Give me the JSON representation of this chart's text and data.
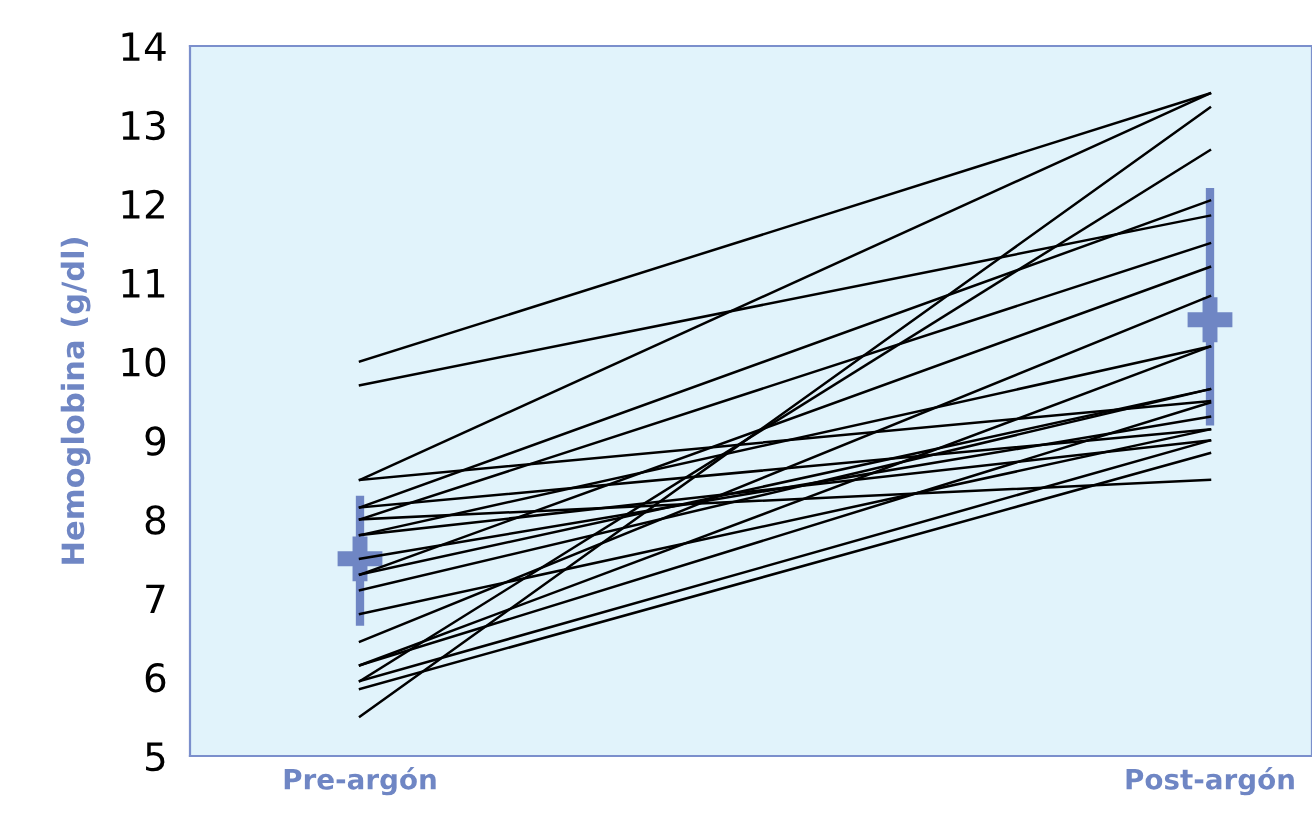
{
  "chart_data": {
    "type": "line",
    "ylabel": "Hemoglobina (g/dl)",
    "categories": [
      "Pre-argón",
      "Post-argón"
    ],
    "ylim": [
      5,
      14
    ],
    "yticks": [
      5,
      6,
      7,
      8,
      9,
      10,
      11,
      12,
      13,
      14
    ],
    "grid": false,
    "legend": false,
    "marker": "none",
    "line_style": "solid",
    "series": [
      {
        "color": "#000000",
        "values": [
          10.0,
          13.4
        ]
      },
      {
        "color": "#000000",
        "values": [
          9.7,
          11.85
        ]
      },
      {
        "color": "#000000",
        "values": [
          8.5,
          13.4
        ]
      },
      {
        "color": "#000000",
        "values": [
          8.5,
          9.5
        ]
      },
      {
        "color": "#000000",
        "values": [
          8.15,
          12.04
        ]
      },
      {
        "color": "#000000",
        "values": [
          8.15,
          9.14
        ]
      },
      {
        "color": "#000000",
        "values": [
          8.0,
          11.5
        ]
      },
      {
        "color": "#000000",
        "values": [
          8.0,
          8.5
        ]
      },
      {
        "color": "#000000",
        "values": [
          7.8,
          10.19
        ]
      },
      {
        "color": "#000000",
        "values": [
          7.8,
          9.0
        ]
      },
      {
        "color": "#000000",
        "values": [
          7.5,
          9.3
        ]
      },
      {
        "color": "#000000",
        "values": [
          7.3,
          11.2
        ]
      },
      {
        "color": "#000000",
        "values": [
          7.3,
          9.65
        ]
      },
      {
        "color": "#000000",
        "values": [
          7.1,
          9.65
        ]
      },
      {
        "color": "#000000",
        "values": [
          6.8,
          9.14
        ]
      },
      {
        "color": "#000000",
        "values": [
          6.45,
          10.83
        ]
      },
      {
        "color": "#000000",
        "values": [
          6.15,
          10.19
        ]
      },
      {
        "color": "#000000",
        "values": [
          6.15,
          9.48
        ]
      },
      {
        "color": "#000000",
        "values": [
          5.95,
          12.68
        ]
      },
      {
        "color": "#000000",
        "values": [
          5.95,
          9.0
        ]
      },
      {
        "color": "#000000",
        "values": [
          5.85,
          8.84
        ]
      },
      {
        "color": "#000000",
        "values": [
          5.5,
          13.22
        ]
      },
      {
        "type": "scatter",
        "marker": "cross",
        "color": "#6f86c4",
        "x": [
          "Pre-argón",
          "Post-argón"
        ],
        "values": [
          7.5,
          10.53
        ],
        "errors": [
          [
            6.65,
            8.3
          ],
          [
            9.19,
            12.2
          ]
        ]
      }
    ]
  }
}
